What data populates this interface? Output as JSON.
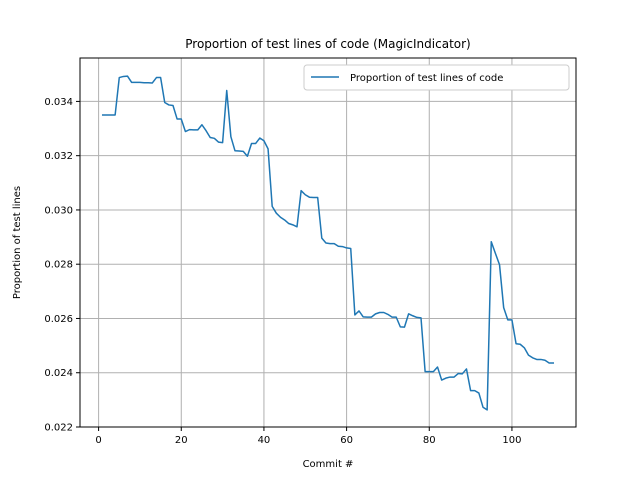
{
  "chart_data": {
    "type": "line",
    "title": "Proportion of test lines of code (MagicIndicator)",
    "xlabel": "Commit #",
    "ylabel": "Proportion of test lines",
    "xlim": [
      -4.5,
      115.5
    ],
    "ylim": [
      0.022,
      0.0356
    ],
    "xticks": [
      0,
      20,
      40,
      60,
      80,
      100
    ],
    "xtick_labels": [
      "0",
      "20",
      "40",
      "60",
      "80",
      "100"
    ],
    "yticks": [
      0.022,
      0.024,
      0.026,
      0.028,
      0.03,
      0.032,
      0.034
    ],
    "ytick_labels": [
      "0.022",
      "0.024",
      "0.026",
      "0.028",
      "0.030",
      "0.032",
      "0.034"
    ],
    "grid": true,
    "legend_position": "upper right",
    "colors": {
      "series": "#1f77b4",
      "grid": "#b0b0b0",
      "axes": "#000000"
    },
    "series": [
      {
        "name": "Proportion of test lines of code",
        "x": [
          1,
          2,
          3,
          4,
          5,
          6,
          7,
          8,
          9,
          10,
          11,
          12,
          13,
          14,
          15,
          16,
          17,
          18,
          19,
          20,
          21,
          22,
          23,
          24,
          25,
          26,
          27,
          28,
          29,
          30,
          31,
          32,
          33,
          34,
          35,
          36,
          37,
          38,
          39,
          40,
          41,
          42,
          43,
          44,
          45,
          46,
          47,
          48,
          49,
          50,
          51,
          52,
          53,
          54,
          55,
          56,
          57,
          58,
          59,
          60,
          61,
          62,
          63,
          64,
          65,
          66,
          67,
          68,
          69,
          70,
          71,
          72,
          73,
          74,
          75,
          76,
          77,
          78,
          79,
          80,
          81,
          82,
          83,
          84,
          85,
          86,
          87,
          88,
          89,
          90,
          91,
          92,
          93,
          94,
          95,
          96,
          97,
          98,
          99,
          100,
          101,
          102,
          103,
          104,
          105,
          106,
          107,
          108,
          109,
          110
        ],
        "y": [
          0.0335,
          0.0335,
          0.0335,
          0.0335,
          0.03488,
          0.03492,
          0.03493,
          0.0347,
          0.0347,
          0.0347,
          0.03469,
          0.03469,
          0.03468,
          0.03488,
          0.03488,
          0.03396,
          0.03387,
          0.03385,
          0.03335,
          0.03335,
          0.03289,
          0.03296,
          0.03295,
          0.03295,
          0.03314,
          0.03292,
          0.03267,
          0.03264,
          0.0325,
          0.03248,
          0.0344,
          0.0327,
          0.03218,
          0.03217,
          0.03216,
          0.03198,
          0.03245,
          0.03245,
          0.03265,
          0.03255,
          0.03225,
          0.03013,
          0.02988,
          0.02973,
          0.02963,
          0.0295,
          0.02945,
          0.02938,
          0.03071,
          0.03056,
          0.03047,
          0.03046,
          0.03046,
          0.02896,
          0.02878,
          0.02876,
          0.02876,
          0.02866,
          0.02865,
          0.0286,
          0.02858,
          0.02613,
          0.02628,
          0.02606,
          0.02605,
          0.02605,
          0.02617,
          0.02622,
          0.02622,
          0.02615,
          0.02605,
          0.02605,
          0.02569,
          0.02568,
          0.02617,
          0.0261,
          0.02604,
          0.02602,
          0.02404,
          0.02404,
          0.02404,
          0.02421,
          0.02373,
          0.0238,
          0.02384,
          0.02384,
          0.02397,
          0.02396,
          0.02414,
          0.02334,
          0.02334,
          0.02325,
          0.02273,
          0.02263,
          0.02883,
          0.0284,
          0.02798,
          0.0264,
          0.02595,
          0.02595,
          0.02507,
          0.02505,
          0.02492,
          0.02465,
          0.02455,
          0.02449,
          0.02449,
          0.02446,
          0.02436,
          0.02436
        ]
      }
    ]
  }
}
